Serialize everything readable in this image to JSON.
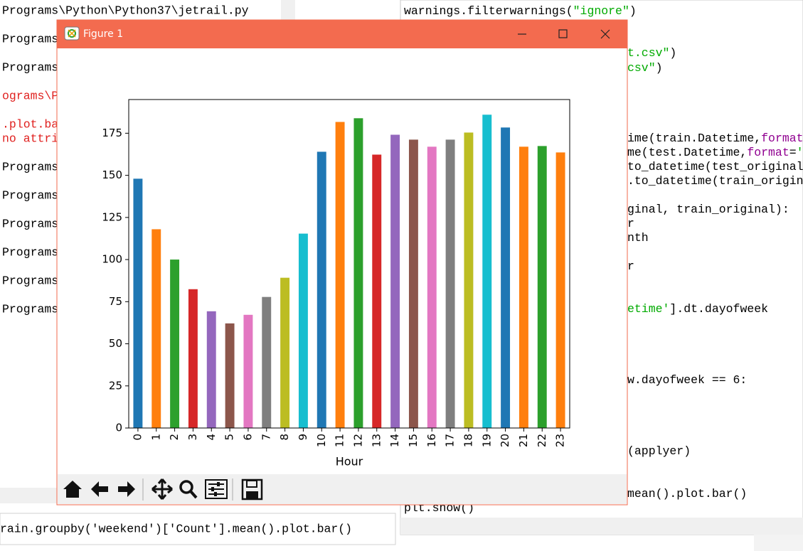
{
  "shell_window": {
    "lines": [
      {
        "text": "Programs\\Python\\Python37\\jetrail.py",
        "color": "#000000"
      },
      {
        "text": "Programs",
        "color": "#000000"
      },
      {
        "text": "Programs",
        "color": "#000000"
      },
      {
        "text": "ograms\\P",
        "color": "#e0211f"
      },
      {
        "text": ".plot.ba",
        "color": "#e0211f"
      },
      {
        "text": "no attri",
        "color": "#e0211f"
      },
      {
        "text": "Programs",
        "color": "#000000"
      },
      {
        "text": "Programs",
        "color": "#000000"
      },
      {
        "text": "Programs",
        "color": "#000000"
      },
      {
        "text": "Programs",
        "color": "#000000"
      },
      {
        "text": "Programs",
        "color": "#000000"
      },
      {
        "text": "Programs",
        "color": "#000000"
      }
    ],
    "prompt": "rain.groupby('weekend')['Count'].mean().plot.bar()"
  },
  "editor_window": {
    "lines": [
      [
        {
          "text": "warnings.filterwarnings(",
          "color": "#000000"
        },
        {
          "text": "\"ignore\"",
          "color": "#00aa00"
        },
        {
          "text": ")",
          "color": "#000000"
        }
      ],
      [
        {
          "text": "plt.show()",
          "color": "#000000"
        }
      ]
    ],
    "fragments": [
      [
        {
          "text": "t.csv\"",
          "color": "#00aa00"
        },
        {
          "text": ")",
          "color": "#000000"
        }
      ],
      [
        {
          "text": "csv\"",
          "color": "#00aa00"
        },
        {
          "text": ")",
          "color": "#000000"
        }
      ],
      [
        {
          "text": "ime(train.Datetime,",
          "color": "#000000"
        },
        {
          "text": "format",
          "color": "#900090"
        }
      ],
      [
        {
          "text": "me(test.Datetime,",
          "color": "#000000"
        },
        {
          "text": "format",
          "color": "#900090"
        },
        {
          "text": "=",
          "color": "#000000"
        },
        {
          "text": "'",
          "color": "#00aa00"
        }
      ],
      [
        {
          "text": "to_datetime(test_original",
          "color": "#000000"
        }
      ],
      [
        {
          "text": ".to_datetime(train_origin",
          "color": "#000000"
        }
      ],
      [
        {
          "text": "ginal, train_original):",
          "color": "#000000"
        }
      ],
      [
        {
          "text": "r",
          "color": "#000000"
        }
      ],
      [
        {
          "text": "nth",
          "color": "#000000"
        }
      ],
      [
        {
          "text": "r",
          "color": "#000000"
        }
      ],
      [
        {
          "text": "etime'",
          "color": "#00aa00"
        },
        {
          "text": "].dt.dayofweek",
          "color": "#000000"
        }
      ],
      [
        {
          "text": "w.dayofweek == 6:",
          "color": "#000000"
        }
      ],
      [
        {
          "text": "(applyer)",
          "color": "#000000"
        }
      ],
      [
        {
          "text": "mean().plot.bar()",
          "color": "#000000"
        }
      ]
    ]
  },
  "figure_window": {
    "title": "Figure 1"
  },
  "chart_data": {
    "type": "bar",
    "x_label": "Hour",
    "categories": [
      "0",
      "1",
      "2",
      "3",
      "4",
      "5",
      "6",
      "7",
      "8",
      "9",
      "10",
      "11",
      "12",
      "13",
      "14",
      "15",
      "16",
      "17",
      "18",
      "19",
      "20",
      "21",
      "22",
      "23"
    ],
    "values": [
      148,
      118,
      100,
      82.4,
      69.3,
      62.1,
      67.2,
      77.8,
      89.2,
      115.4,
      164,
      181.7,
      183.9,
      162.3,
      174.1,
      171.2,
      167,
      171.2,
      175.4,
      186,
      178.4,
      167,
      167.4,
      163.6
    ],
    "colors": [
      "#1f77b4",
      "#ff7f0e",
      "#2ca02c",
      "#d62728",
      "#9467bd",
      "#8c564b",
      "#e377c2",
      "#7f7f7f",
      "#bcbd22",
      "#17becf",
      "#1f77b4",
      "#ff7f0e",
      "#2ca02c",
      "#d62728",
      "#9467bd",
      "#8c564b",
      "#e377c2",
      "#7f7f7f",
      "#bcbd22",
      "#17becf",
      "#1f77b4",
      "#ff7f0e",
      "#2ca02c",
      "#ff7f0e"
    ],
    "ylim": [
      0,
      195
    ],
    "yticks": [
      0,
      25,
      50,
      75,
      100,
      125,
      150,
      175
    ],
    "grid": false
  }
}
